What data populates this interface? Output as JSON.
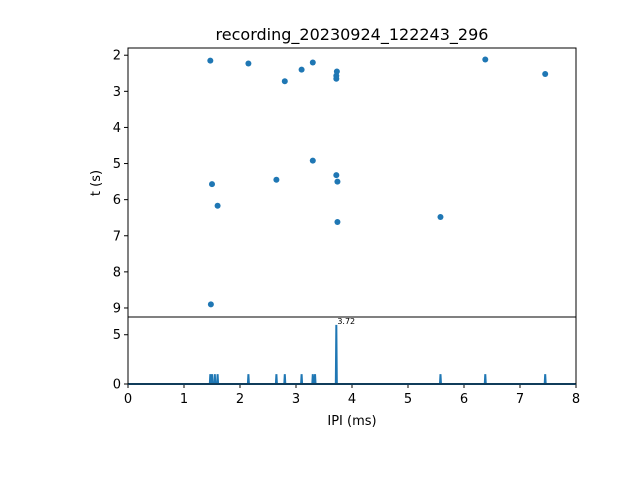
{
  "chart_data": [
    {
      "type": "scatter",
      "title": "recording_20230924_122243_296",
      "xlabel": "",
      "ylabel": "t (s)",
      "xlim": [
        0,
        8
      ],
      "ylim": [
        9.25,
        1.8
      ],
      "y_inverted": true,
      "yticks": [
        "2",
        "3",
        "4",
        "5",
        "6",
        "7",
        "8",
        "9"
      ],
      "color": "#1f77b4",
      "points": [
        {
          "x": 1.47,
          "y": 2.15
        },
        {
          "x": 2.15,
          "y": 2.23
        },
        {
          "x": 3.3,
          "y": 2.2
        },
        {
          "x": 3.1,
          "y": 2.4
        },
        {
          "x": 2.8,
          "y": 2.72
        },
        {
          "x": 3.73,
          "y": 2.45
        },
        {
          "x": 3.72,
          "y": 2.57
        },
        {
          "x": 3.72,
          "y": 2.65
        },
        {
          "x": 6.38,
          "y": 2.12
        },
        {
          "x": 7.45,
          "y": 2.52
        },
        {
          "x": 3.3,
          "y": 4.92
        },
        {
          "x": 2.65,
          "y": 5.45
        },
        {
          "x": 1.5,
          "y": 5.57
        },
        {
          "x": 3.72,
          "y": 5.32
        },
        {
          "x": 3.74,
          "y": 5.5
        },
        {
          "x": 1.6,
          "y": 6.17
        },
        {
          "x": 5.58,
          "y": 6.48
        },
        {
          "x": 3.74,
          "y": 6.62
        },
        {
          "x": 1.48,
          "y": 8.9
        }
      ]
    },
    {
      "type": "line",
      "xlabel": "IPI (ms)",
      "ylabel": "",
      "xlim": [
        0,
        8
      ],
      "ylim": [
        0,
        6.8
      ],
      "xticks": [
        "0",
        "1",
        "2",
        "3",
        "4",
        "5",
        "6",
        "7",
        "8"
      ],
      "yticks": [
        "0",
        "5"
      ],
      "color": "#1f77b4",
      "peaks": [
        {
          "x": 1.47,
          "y": 1
        },
        {
          "x": 1.5,
          "y": 1
        },
        {
          "x": 1.55,
          "y": 1
        },
        {
          "x": 1.6,
          "y": 1
        },
        {
          "x": 2.15,
          "y": 1
        },
        {
          "x": 2.65,
          "y": 1
        },
        {
          "x": 2.8,
          "y": 1
        },
        {
          "x": 3.1,
          "y": 1
        },
        {
          "x": 3.3,
          "y": 1
        },
        {
          "x": 3.34,
          "y": 1
        },
        {
          "x": 3.72,
          "y": 6
        },
        {
          "x": 5.58,
          "y": 1
        },
        {
          "x": 6.38,
          "y": 1
        },
        {
          "x": 7.45,
          "y": 1
        }
      ],
      "annotation": {
        "text": "3.72",
        "x": 3.72,
        "y": 6
      }
    }
  ]
}
